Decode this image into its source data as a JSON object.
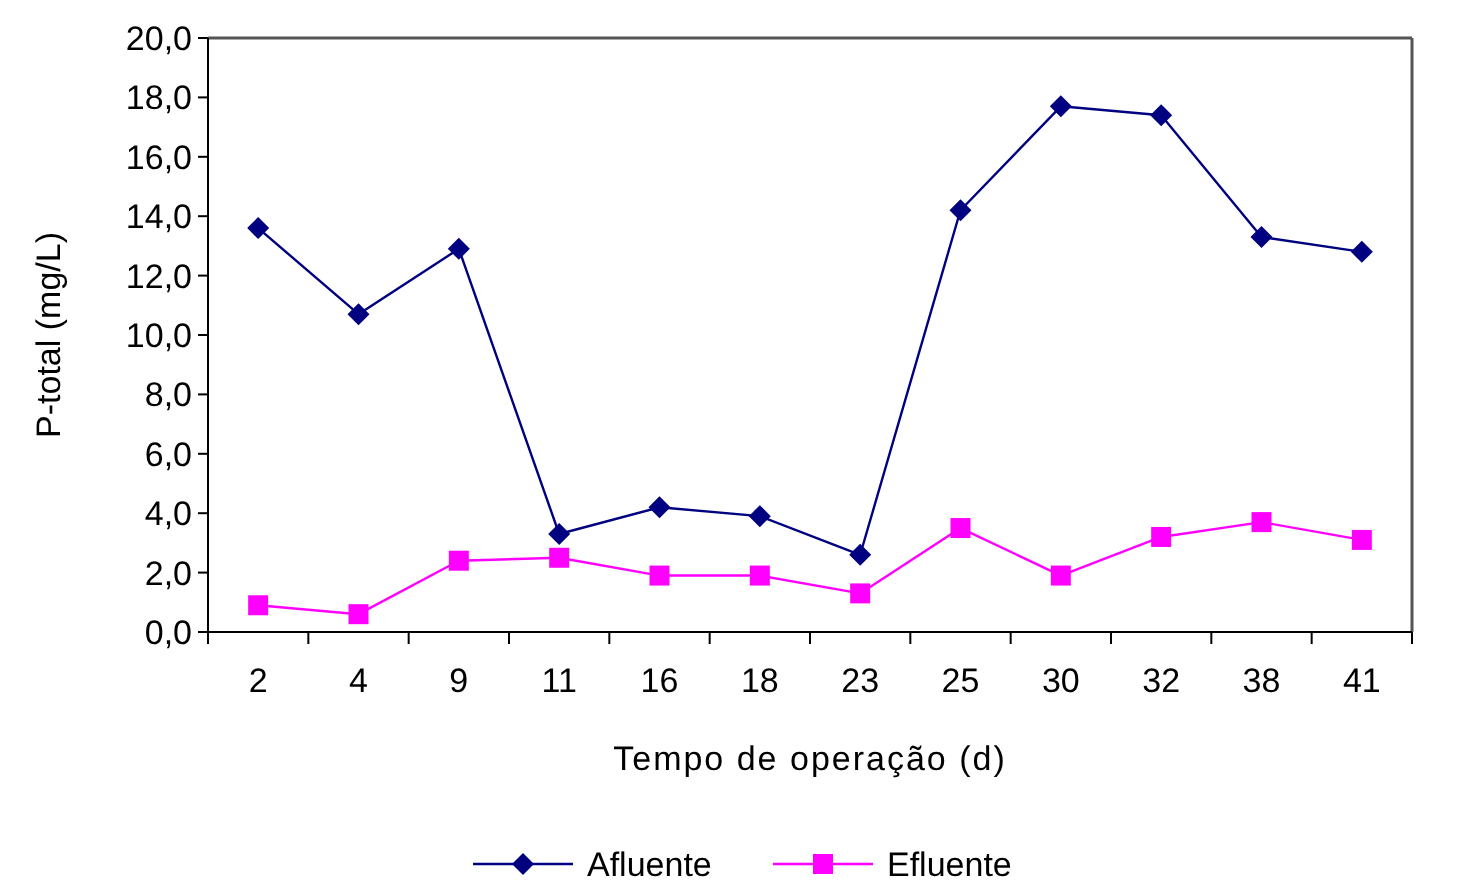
{
  "chart_data": {
    "type": "line",
    "xlabel": "Tempo de operação (d)",
    "ylabel": "P-total (mg/L)",
    "categories": [
      "2",
      "4",
      "9",
      "11",
      "16",
      "18",
      "23",
      "25",
      "30",
      "32",
      "38",
      "41"
    ],
    "series": [
      {
        "name": "Afluente",
        "color": "#000080",
        "marker": "diamond",
        "values": [
          13.6,
          10.7,
          12.9,
          3.3,
          4.2,
          3.9,
          2.6,
          14.2,
          17.7,
          17.4,
          13.3,
          12.8
        ]
      },
      {
        "name": "Efluente",
        "color": "#ff00ff",
        "marker": "square",
        "values": [
          0.9,
          0.6,
          2.4,
          2.5,
          1.9,
          1.9,
          1.3,
          3.5,
          1.9,
          3.2,
          3.7,
          3.1
        ]
      }
    ],
    "ylim": [
      0,
      20
    ],
    "yticks": [
      {
        "value": 0,
        "label": "0,0"
      },
      {
        "value": 2,
        "label": "2,0"
      },
      {
        "value": 4,
        "label": "4,0"
      },
      {
        "value": 6,
        "label": "6,0"
      },
      {
        "value": 8,
        "label": "8,0"
      },
      {
        "value": 10,
        "label": "10,0"
      },
      {
        "value": 12,
        "label": "12,0"
      },
      {
        "value": 14,
        "label": "14,0"
      },
      {
        "value": 16,
        "label": "16,0"
      },
      {
        "value": 18,
        "label": "18,0"
      },
      {
        "value": 20,
        "label": "20,0"
      }
    ],
    "grid": false,
    "legend": "bottom",
    "line_style": "solid"
  }
}
